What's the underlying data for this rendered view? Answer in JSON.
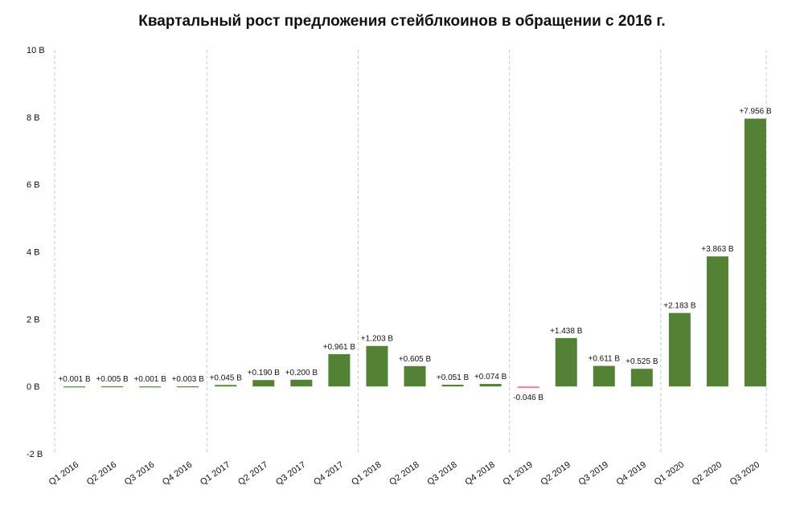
{
  "colors": {
    "positive": "#548235",
    "negative": "#ff7c80",
    "text": "#111111",
    "grid": "#c8c8c8"
  },
  "chart_data": {
    "type": "bar",
    "title": "Квартальный рост предложения стейблкоинов в обращении с 2016 г.",
    "xlabel": "",
    "ylabel": "",
    "ylim": [
      -2,
      10
    ],
    "y_ticks": [
      -2,
      0,
      2,
      4,
      6,
      8,
      10
    ],
    "y_tick_labels": [
      "-2 B",
      "0 B",
      "2 B",
      "4 B",
      "6 B",
      "8 B",
      "10 B"
    ],
    "grid": "vertical-dashed-yearly",
    "legend": "none",
    "categories": [
      "Q1 2016",
      "Q2 2016",
      "Q3 2016",
      "Q4 2016",
      "Q1 2017",
      "Q2 2017",
      "Q3 2017",
      "Q4 2017",
      "Q1 2018",
      "Q2 2018",
      "Q3 2018",
      "Q4 2018",
      "Q1 2019",
      "Q2 2019",
      "Q3 2019",
      "Q4 2019",
      "Q1 2020",
      "Q2 2020",
      "Q3 2020"
    ],
    "values": [
      0.001,
      0.005,
      0.001,
      0.003,
      0.045,
      0.19,
      0.2,
      0.961,
      1.203,
      0.605,
      0.051,
      0.074,
      -0.046,
      1.438,
      0.611,
      0.525,
      2.183,
      3.863,
      7.956
    ],
    "data_labels": [
      "+0.001 B",
      "+0.005 B",
      "+0.001 B",
      "+0.003 B",
      "+0.045 B",
      "+0.190 B",
      "+0.200 B",
      "+0.961 B",
      "+1.203 B",
      "+0.605 B",
      "+0.051 B",
      "+0.074 B",
      "-0.046 B",
      "+1.438 B",
      "+0.611 B",
      "+0.525 B",
      "+2.183 B",
      "+3.863 B",
      "+7.956 B"
    ]
  }
}
